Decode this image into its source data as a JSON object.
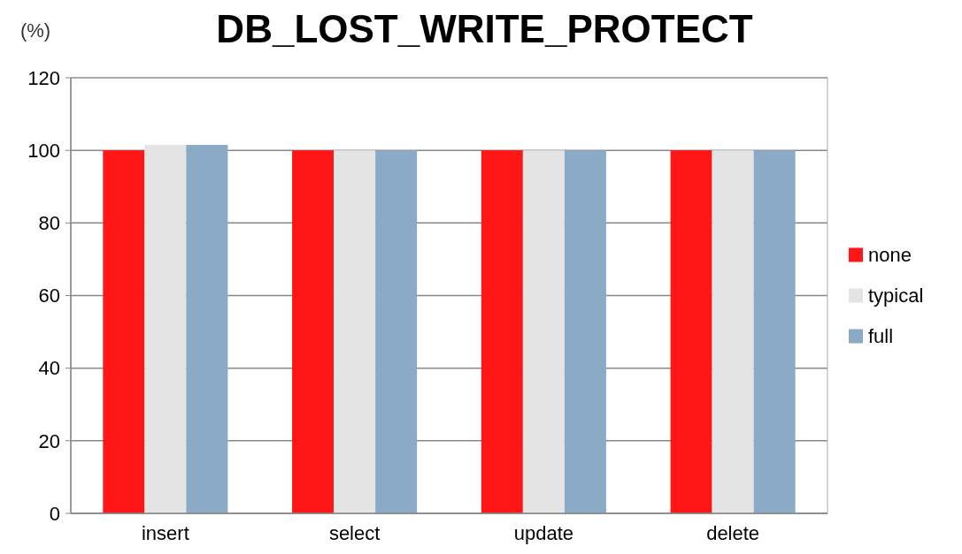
{
  "chart_data": {
    "type": "bar",
    "title": "DB_LOST_WRITE_PROTECT",
    "ylabel": "(%)",
    "categories": [
      "insert",
      "select",
      "update",
      "delete"
    ],
    "series": [
      {
        "name": "none",
        "color": "#ff1616",
        "values": [
          100,
          100,
          100,
          100
        ]
      },
      {
        "name": "typical",
        "color": "#e4e4e4",
        "values": [
          101.5,
          100,
          100,
          100
        ]
      },
      {
        "name": "full",
        "color": "#8baac5",
        "values": [
          101.5,
          100,
          100,
          100
        ]
      }
    ],
    "ylim": [
      0,
      120
    ],
    "yticks": [
      0,
      20,
      40,
      60,
      80,
      100,
      120
    ],
    "grid": "y",
    "legend": "right"
  }
}
